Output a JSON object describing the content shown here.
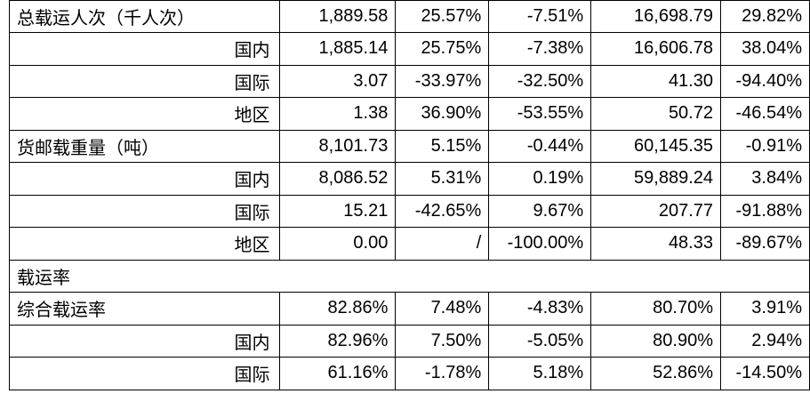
{
  "rows": [
    {
      "label": "总载运人次（千人次）",
      "indent": false,
      "values": [
        "1,889.58",
        "25.57%",
        "-7.51%",
        "16,698.79",
        "29.82%"
      ]
    },
    {
      "label": "国内",
      "indent": true,
      "values": [
        "1,885.14",
        "25.75%",
        "-7.38%",
        "16,606.78",
        "38.04%"
      ]
    },
    {
      "label": "国际",
      "indent": true,
      "values": [
        "3.07",
        "-33.97%",
        "-32.50%",
        "41.30",
        "-94.40%"
      ]
    },
    {
      "label": "地区",
      "indent": true,
      "values": [
        "1.38",
        "36.90%",
        "-53.55%",
        "50.72",
        "-46.54%"
      ]
    },
    {
      "label": "货邮载重量（吨）",
      "indent": false,
      "values": [
        "8,101.73",
        "5.15%",
        "-0.44%",
        "60,145.35",
        "-0.91%"
      ]
    },
    {
      "label": "国内",
      "indent": true,
      "values": [
        "8,086.52",
        "5.31%",
        "0.19%",
        "59,889.24",
        "3.84%"
      ]
    },
    {
      "label": "国际",
      "indent": true,
      "values": [
        "15.21",
        "-42.65%",
        "9.67%",
        "207.77",
        "-91.88%"
      ]
    },
    {
      "label": "地区",
      "indent": true,
      "values": [
        "0.00",
        "/",
        "-100.00%",
        "48.33",
        "-89.67%"
      ]
    },
    {
      "label": "载运率",
      "section": true
    },
    {
      "label": "综合载运率",
      "indent": false,
      "values": [
        "82.86%",
        "7.48%",
        "-4.83%",
        "80.70%",
        "3.91%"
      ]
    },
    {
      "label": "国内",
      "indent": true,
      "values": [
        "82.96%",
        "7.50%",
        "-5.05%",
        "80.90%",
        "2.94%"
      ]
    },
    {
      "label": "国际",
      "indent": true,
      "values": [
        "61.16%",
        "-1.78%",
        "5.18%",
        "52.86%",
        "-14.50%"
      ]
    }
  ]
}
